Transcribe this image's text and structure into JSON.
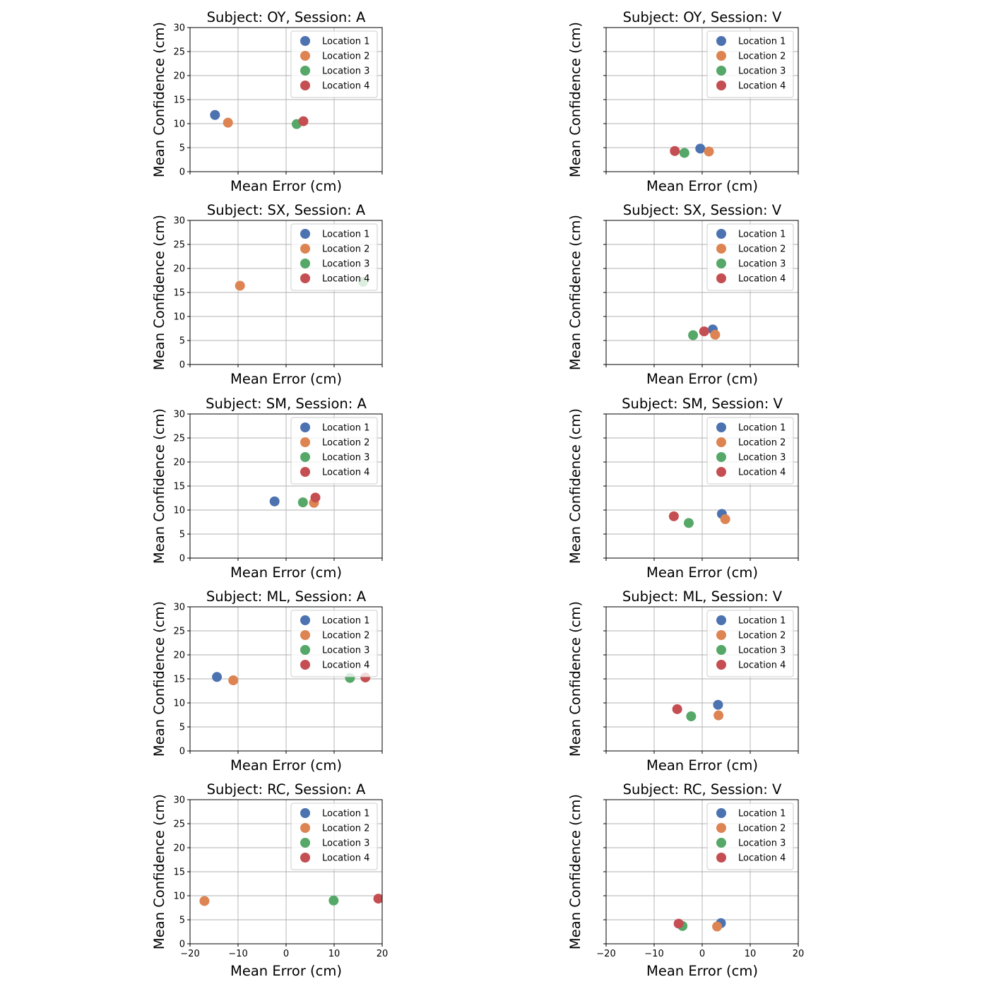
{
  "figure": {
    "marker_size_note": "dots",
    "colors": {
      "Location 1": "#4C72B0",
      "Location 2": "#DD8452",
      "Location 3": "#55A868",
      "Location 4": "#C44E52",
      "grid": "#b0b0b0",
      "legend_border": "#cccccc"
    }
  },
  "chart_data": [
    {
      "type": "scatter",
      "title": "Subject: OY, Session: A",
      "xlabel": "Mean Error (cm)",
      "ylabel": "Mean Confidence (cm)",
      "xlim": [
        -20,
        20
      ],
      "ylim": [
        0,
        30
      ],
      "xticks": [
        -20,
        -10,
        0,
        10,
        20
      ],
      "yticks": [
        0,
        5,
        10,
        15,
        20,
        25,
        30
      ],
      "show_xticklabels": false,
      "show_yticklabels": true,
      "grid": true,
      "legend": "upper right",
      "series": [
        {
          "name": "Location 1",
          "points": [
            [
              -14.8,
              11.8
            ]
          ]
        },
        {
          "name": "Location 2",
          "points": [
            [
              -12.1,
              10.2
            ]
          ]
        },
        {
          "name": "Location 3",
          "points": [
            [
              2.2,
              9.9
            ]
          ]
        },
        {
          "name": "Location 4",
          "points": [
            [
              3.6,
              10.5
            ]
          ]
        }
      ]
    },
    {
      "type": "scatter",
      "title": "Subject: OY, Session: V",
      "xlabel": "Mean Error (cm)",
      "ylabel": "Mean Confidence (cm)",
      "xlim": [
        -20,
        20
      ],
      "ylim": [
        0,
        30
      ],
      "xticks": [
        -20,
        -10,
        0,
        10,
        20
      ],
      "yticks": [
        0,
        5,
        10,
        15,
        20,
        25,
        30
      ],
      "show_xticklabels": false,
      "show_yticklabels": false,
      "grid": true,
      "legend": "upper right",
      "series": [
        {
          "name": "Location 1",
          "points": [
            [
              -0.4,
              4.8
            ]
          ]
        },
        {
          "name": "Location 2",
          "points": [
            [
              1.4,
              4.2
            ]
          ]
        },
        {
          "name": "Location 3",
          "points": [
            [
              -3.7,
              3.9
            ]
          ]
        },
        {
          "name": "Location 4",
          "points": [
            [
              -5.7,
              4.3
            ]
          ]
        }
      ]
    },
    {
      "type": "scatter",
      "title": "Subject: SX, Session: A",
      "xlabel": "Mean Error (cm)",
      "ylabel": "Mean Confidence (cm)",
      "xlim": [
        -20,
        20
      ],
      "ylim": [
        0,
        30
      ],
      "xticks": [
        -20,
        -10,
        0,
        10,
        20
      ],
      "yticks": [
        0,
        5,
        10,
        15,
        20,
        25,
        30
      ],
      "show_xticklabels": false,
      "show_yticklabels": true,
      "grid": true,
      "legend": "upper right",
      "series": [
        {
          "name": "Location 1",
          "points": []
        },
        {
          "name": "Location 2",
          "points": [
            [
              -9.6,
              16.4
            ]
          ]
        },
        {
          "name": "Location 3",
          "points": [
            [
              16.0,
              17.2
            ]
          ]
        },
        {
          "name": "Location 4",
          "points": []
        }
      ]
    },
    {
      "type": "scatter",
      "title": "Subject: SX, Session: V",
      "xlabel": "Mean Error (cm)",
      "ylabel": "Mean Confidence (cm)",
      "xlim": [
        -20,
        20
      ],
      "ylim": [
        0,
        30
      ],
      "xticks": [
        -20,
        -10,
        0,
        10,
        20
      ],
      "yticks": [
        0,
        5,
        10,
        15,
        20,
        25,
        30
      ],
      "show_xticklabels": false,
      "show_yticklabels": false,
      "grid": true,
      "legend": "upper right",
      "series": [
        {
          "name": "Location 1",
          "points": [
            [
              2.2,
              7.3
            ]
          ]
        },
        {
          "name": "Location 2",
          "points": [
            [
              2.7,
              6.2
            ]
          ]
        },
        {
          "name": "Location 3",
          "points": [
            [
              -1.9,
              6.1
            ]
          ]
        },
        {
          "name": "Location 4",
          "points": [
            [
              0.4,
              6.9
            ]
          ]
        }
      ]
    },
    {
      "type": "scatter",
      "title": "Subject: SM, Session: A",
      "xlabel": "Mean Error (cm)",
      "ylabel": "Mean Confidence (cm)",
      "xlim": [
        -20,
        20
      ],
      "ylim": [
        0,
        30
      ],
      "xticks": [
        -20,
        -10,
        0,
        10,
        20
      ],
      "yticks": [
        0,
        5,
        10,
        15,
        20,
        25,
        30
      ],
      "show_xticklabels": false,
      "show_yticklabels": true,
      "grid": true,
      "legend": "upper right",
      "series": [
        {
          "name": "Location 1",
          "points": [
            [
              -2.4,
              11.8
            ]
          ]
        },
        {
          "name": "Location 2",
          "points": [
            [
              5.8,
              11.5
            ]
          ]
        },
        {
          "name": "Location 3",
          "points": [
            [
              3.5,
              11.6
            ]
          ]
        },
        {
          "name": "Location 4",
          "points": [
            [
              6.1,
              12.6
            ]
          ]
        }
      ]
    },
    {
      "type": "scatter",
      "title": "Subject: SM, Session: V",
      "xlabel": "Mean Error (cm)",
      "ylabel": "Mean Confidence (cm)",
      "xlim": [
        -20,
        20
      ],
      "ylim": [
        0,
        30
      ],
      "xticks": [
        -20,
        -10,
        0,
        10,
        20
      ],
      "yticks": [
        0,
        5,
        10,
        15,
        20,
        25,
        30
      ],
      "show_xticklabels": false,
      "show_yticklabels": false,
      "grid": true,
      "legend": "upper right",
      "series": [
        {
          "name": "Location 1",
          "points": [
            [
              4.1,
              9.2
            ]
          ]
        },
        {
          "name": "Location 2",
          "points": [
            [
              4.8,
              8.1
            ]
          ]
        },
        {
          "name": "Location 3",
          "points": [
            [
              -2.8,
              7.3
            ]
          ]
        },
        {
          "name": "Location 4",
          "points": [
            [
              -5.9,
              8.7
            ]
          ]
        }
      ]
    },
    {
      "type": "scatter",
      "title": "Subject: ML, Session: A",
      "xlabel": "Mean Error (cm)",
      "ylabel": "Mean Confidence (cm)",
      "xlim": [
        -20,
        20
      ],
      "ylim": [
        0,
        30
      ],
      "xticks": [
        -20,
        -10,
        0,
        10,
        20
      ],
      "yticks": [
        0,
        5,
        10,
        15,
        20,
        25,
        30
      ],
      "show_xticklabels": false,
      "show_yticklabels": true,
      "grid": true,
      "legend": "upper right",
      "series": [
        {
          "name": "Location 1",
          "points": [
            [
              -14.4,
              15.4
            ]
          ]
        },
        {
          "name": "Location 2",
          "points": [
            [
              -11.0,
              14.7
            ]
          ]
        },
        {
          "name": "Location 3",
          "points": [
            [
              13.3,
              15.2
            ]
          ]
        },
        {
          "name": "Location 4",
          "points": [
            [
              16.5,
              15.3
            ]
          ]
        }
      ]
    },
    {
      "type": "scatter",
      "title": "Subject: ML, Session: V",
      "xlabel": "Mean Error (cm)",
      "ylabel": "Mean Confidence (cm)",
      "xlim": [
        -20,
        20
      ],
      "ylim": [
        0,
        30
      ],
      "xticks": [
        -20,
        -10,
        0,
        10,
        20
      ],
      "yticks": [
        0,
        5,
        10,
        15,
        20,
        25,
        30
      ],
      "show_xticklabels": false,
      "show_yticklabels": false,
      "grid": true,
      "legend": "upper right",
      "series": [
        {
          "name": "Location 1",
          "points": [
            [
              3.3,
              9.6
            ]
          ]
        },
        {
          "name": "Location 2",
          "points": [
            [
              3.4,
              7.4
            ]
          ]
        },
        {
          "name": "Location 3",
          "points": [
            [
              -2.3,
              7.2
            ]
          ]
        },
        {
          "name": "Location 4",
          "points": [
            [
              -5.2,
              8.7
            ]
          ]
        }
      ]
    },
    {
      "type": "scatter",
      "title": "Subject: RC, Session: A",
      "xlabel": "Mean Error (cm)",
      "ylabel": "Mean Confidence (cm)",
      "xlim": [
        -20,
        20
      ],
      "ylim": [
        0,
        30
      ],
      "xticks": [
        -20,
        -10,
        0,
        10,
        20
      ],
      "yticks": [
        0,
        5,
        10,
        15,
        20,
        25,
        30
      ],
      "show_xticklabels": true,
      "show_yticklabels": true,
      "grid": true,
      "legend": "upper right",
      "series": [
        {
          "name": "Location 1",
          "points": []
        },
        {
          "name": "Location 2",
          "points": [
            [
              -17.0,
              8.9
            ]
          ]
        },
        {
          "name": "Location 3",
          "points": [
            [
              9.9,
              9.0
            ]
          ]
        },
        {
          "name": "Location 4",
          "points": [
            [
              19.2,
              9.4
            ]
          ]
        }
      ]
    },
    {
      "type": "scatter",
      "title": "Subject: RC, Session: V",
      "xlabel": "Mean Error (cm)",
      "ylabel": "Mean Confidence (cm)",
      "xlim": [
        -20,
        20
      ],
      "ylim": [
        0,
        30
      ],
      "xticks": [
        -20,
        -10,
        0,
        10,
        20
      ],
      "yticks": [
        0,
        5,
        10,
        15,
        20,
        25,
        30
      ],
      "show_xticklabels": true,
      "show_yticklabels": false,
      "grid": true,
      "legend": "upper right",
      "series": [
        {
          "name": "Location 1",
          "points": [
            [
              3.9,
              4.3
            ]
          ]
        },
        {
          "name": "Location 2",
          "points": [
            [
              3.1,
              3.6
            ]
          ]
        },
        {
          "name": "Location 3",
          "points": [
            [
              -4.1,
              3.7
            ]
          ]
        },
        {
          "name": "Location 4",
          "points": [
            [
              -4.9,
              4.2
            ]
          ]
        }
      ]
    }
  ]
}
